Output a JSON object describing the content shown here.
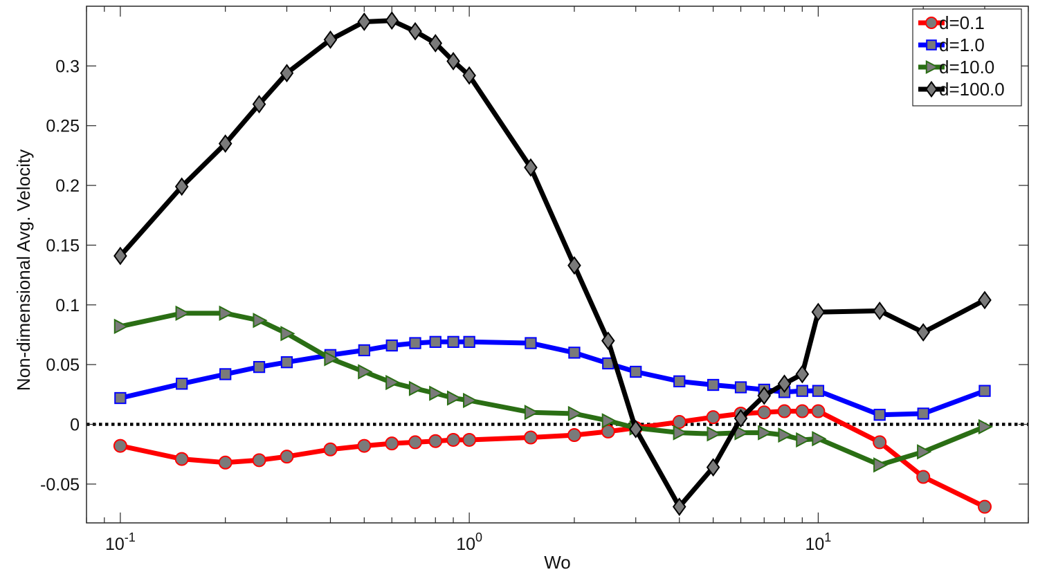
{
  "chart_data": {
    "type": "line",
    "xscale": "log",
    "xlabel": "Wo",
    "ylabel": "Non-dimensional Avg. Velocity",
    "xlim": [
      0.08,
      40
    ],
    "ylim": [
      -0.0825,
      0.35
    ],
    "x_ticks": [
      {
        "value": 0.1,
        "base": "10",
        "exp": "-1"
      },
      {
        "value": 1,
        "base": "10",
        "exp": "0"
      },
      {
        "value": 10,
        "base": "10",
        "exp": "1"
      }
    ],
    "y_ticks": [
      {
        "value": -0.05,
        "label": "-0.05"
      },
      {
        "value": 0,
        "label": "0"
      },
      {
        "value": 0.05,
        "label": "0.05"
      },
      {
        "value": 0.1,
        "label": "0.1"
      },
      {
        "value": 0.15,
        "label": "0.15"
      },
      {
        "value": 0.2,
        "label": "0.2"
      },
      {
        "value": 0.25,
        "label": "0.25"
      },
      {
        "value": 0.3,
        "label": "0.3"
      }
    ],
    "zero_line": {
      "y": 0,
      "style": "dotted",
      "color": "#000000"
    },
    "legend_position": "top-right",
    "x": [
      0.1,
      0.15,
      0.2,
      0.25,
      0.3,
      0.4,
      0.5,
      0.6,
      0.7,
      0.8,
      0.9,
      1.0,
      1.5,
      2.0,
      2.5,
      3.0,
      4.0,
      5.0,
      6.0,
      7.0,
      8.0,
      9.0,
      10.0,
      15.0,
      20.0,
      30.0
    ],
    "series": [
      {
        "name": "d=0.1",
        "color": "#ff0000",
        "marker": "circle",
        "values": [
          -0.018,
          -0.029,
          -0.032,
          -0.03,
          -0.027,
          -0.021,
          -0.018,
          -0.016,
          -0.015,
          -0.014,
          -0.013,
          -0.013,
          -0.011,
          -0.009,
          -0.006,
          -0.003,
          0.002,
          0.006,
          0.009,
          0.01,
          0.011,
          0.011,
          0.011,
          -0.015,
          -0.044,
          -0.069
        ]
      },
      {
        "name": "d=1.0",
        "color": "#0000ff",
        "marker": "square",
        "values": [
          0.022,
          0.034,
          0.042,
          0.048,
          0.052,
          0.058,
          0.062,
          0.066,
          0.068,
          0.069,
          0.069,
          0.069,
          0.068,
          0.06,
          0.051,
          0.044,
          0.036,
          0.033,
          0.031,
          0.029,
          0.027,
          0.028,
          0.028,
          0.008,
          0.009,
          0.028
        ]
      },
      {
        "name": "d=10.0",
        "color": "#2a6e14",
        "marker": "triangle-right",
        "values": [
          0.082,
          0.093,
          0.093,
          0.087,
          0.076,
          0.055,
          0.044,
          0.035,
          0.03,
          0.026,
          0.022,
          0.02,
          0.01,
          0.009,
          0.003,
          -0.003,
          -0.007,
          -0.008,
          -0.007,
          -0.007,
          -0.009,
          -0.013,
          -0.012,
          -0.034,
          -0.023,
          -0.002
        ]
      },
      {
        "name": "d=100.0",
        "color": "#000000",
        "marker": "diamond",
        "values": [
          0.141,
          0.199,
          0.235,
          0.268,
          0.294,
          0.322,
          0.337,
          0.338,
          0.329,
          0.319,
          0.304,
          0.292,
          0.215,
          0.133,
          0.07,
          -0.004,
          -0.069,
          -0.036,
          0.005,
          0.024,
          0.034,
          0.042,
          0.094,
          0.095,
          0.077,
          0.104
        ]
      }
    ]
  }
}
